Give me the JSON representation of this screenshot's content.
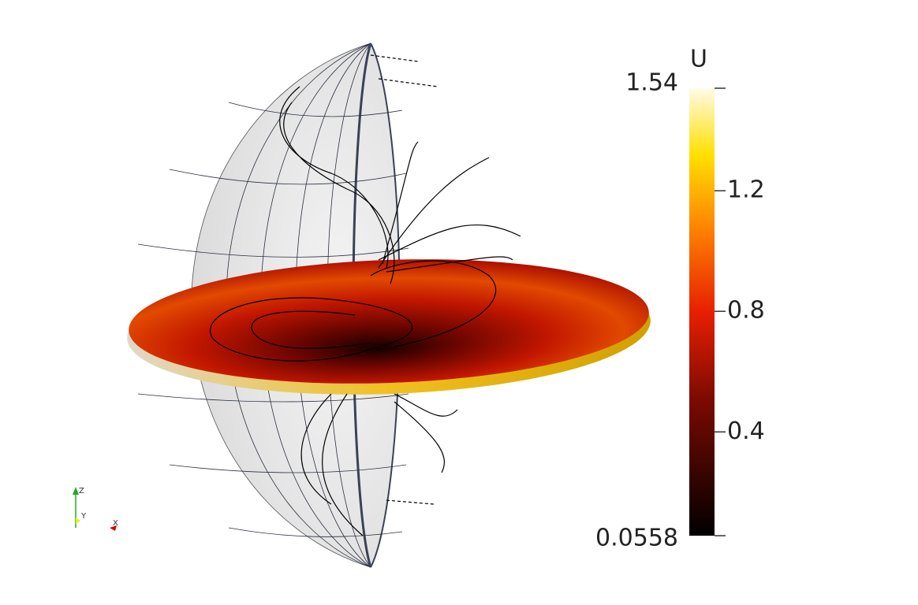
{
  "colorbar": {
    "title": "U",
    "max": 1.54,
    "min": 0.0558,
    "ticks": [
      1.2,
      0.8,
      0.4
    ]
  },
  "axes_labels": {
    "z": "Z",
    "y": "Y",
    "x": "X"
  }
}
